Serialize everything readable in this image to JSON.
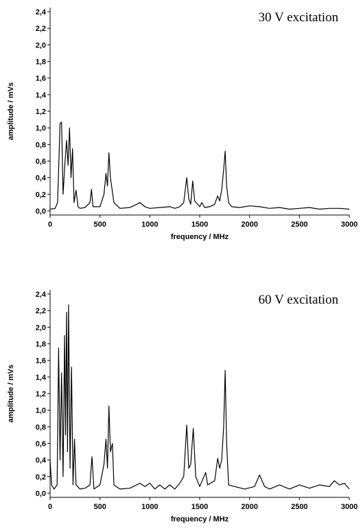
{
  "chart_data": [
    {
      "type": "line",
      "annotation": "30 V excitation",
      "xlabel": "frequency / MHz",
      "ylabel": "amplitude / mVs",
      "x": [
        0,
        50,
        75,
        100,
        115,
        130,
        150,
        165,
        180,
        195,
        210,
        225,
        240,
        260,
        280,
        300,
        350,
        400,
        415,
        430,
        500,
        540,
        560,
        575,
        590,
        605,
        620,
        640,
        700,
        800,
        870,
        900,
        950,
        1000,
        1100,
        1200,
        1250,
        1300,
        1340,
        1370,
        1390,
        1410,
        1430,
        1450,
        1500,
        1520,
        1550,
        1600,
        1650,
        1680,
        1700,
        1720,
        1740,
        1755,
        1770,
        1790,
        1820,
        1900,
        2000,
        2100,
        2200,
        2300,
        2400,
        2500,
        2600,
        2700,
        2800,
        2900,
        3000
      ],
      "values": [
        0.02,
        0.03,
        0.1,
        1.05,
        1.07,
        0.2,
        0.6,
        0.85,
        0.55,
        1.0,
        0.4,
        0.75,
        0.1,
        0.25,
        0.05,
        0.03,
        0.04,
        0.1,
        0.26,
        0.05,
        0.05,
        0.2,
        0.45,
        0.3,
        0.7,
        0.4,
        0.27,
        0.1,
        0.03,
        0.04,
        0.08,
        0.1,
        0.05,
        0.03,
        0.04,
        0.05,
        0.03,
        0.05,
        0.1,
        0.4,
        0.15,
        0.08,
        0.36,
        0.12,
        0.05,
        0.1,
        0.04,
        0.05,
        0.08,
        0.18,
        0.12,
        0.25,
        0.5,
        0.72,
        0.3,
        0.1,
        0.05,
        0.04,
        0.06,
        0.05,
        0.03,
        0.04,
        0.02,
        0.03,
        0.04,
        0.02,
        0.03,
        0.03,
        0.02
      ],
      "color": "#000000",
      "xlim": [
        0,
        3000
      ],
      "xticks": [
        0,
        500,
        1000,
        1500,
        2000,
        2500,
        3000
      ],
      "ylim": [
        -0.05,
        2.45
      ],
      "yticks": [
        {
          "value": 0,
          "label": "0,0"
        },
        {
          "value": 0.2,
          "label": "0,2"
        },
        {
          "value": 0.4,
          "label": "0,4"
        },
        {
          "value": 0.6,
          "label": "0,6"
        },
        {
          "value": 0.8,
          "label": "0,8"
        },
        {
          "value": 1.0,
          "label": "1,0"
        },
        {
          "value": 1.2,
          "label": "1,2"
        },
        {
          "value": 1.4,
          "label": "1,4"
        },
        {
          "value": 1.6,
          "label": "1,6"
        },
        {
          "value": 1.8,
          "label": "1,8"
        },
        {
          "value": 2.0,
          "label": "2,0"
        },
        {
          "value": 2.2,
          "label": "2,2"
        },
        {
          "value": 2.4,
          "label": "2,4"
        }
      ]
    },
    {
      "type": "line",
      "annotation": "60 V excitation",
      "xlabel": "frequency / MHz",
      "ylabel": "amplitude / mVs",
      "x": [
        0,
        15,
        40,
        70,
        85,
        100,
        115,
        130,
        145,
        155,
        165,
        175,
        185,
        200,
        215,
        230,
        245,
        260,
        300,
        350,
        400,
        420,
        440,
        500,
        540,
        560,
        575,
        590,
        605,
        625,
        640,
        700,
        800,
        900,
        950,
        1000,
        1050,
        1100,
        1150,
        1200,
        1250,
        1300,
        1340,
        1370,
        1390,
        1410,
        1435,
        1460,
        1500,
        1560,
        1580,
        1650,
        1680,
        1700,
        1720,
        1740,
        1755,
        1770,
        1790,
        1850,
        1950,
        2050,
        2100,
        2150,
        2200,
        2300,
        2400,
        2500,
        2600,
        2700,
        2800,
        2850,
        2900,
        2950,
        3000
      ],
      "values": [
        0.4,
        0.1,
        0.05,
        0.1,
        1.75,
        0.4,
        1.45,
        0.2,
        1.9,
        0.7,
        2.18,
        0.5,
        2.27,
        0.3,
        1.52,
        0.1,
        0.65,
        0.1,
        0.05,
        0.06,
        0.1,
        0.44,
        0.05,
        0.1,
        0.35,
        0.65,
        0.3,
        1.05,
        0.5,
        0.6,
        0.1,
        0.05,
        0.06,
        0.12,
        0.08,
        0.12,
        0.05,
        0.1,
        0.05,
        0.1,
        0.05,
        0.12,
        0.2,
        0.82,
        0.3,
        0.35,
        0.78,
        0.2,
        0.08,
        0.25,
        0.1,
        0.15,
        0.42,
        0.3,
        0.4,
        0.8,
        1.48,
        0.6,
        0.1,
        0.08,
        0.05,
        0.08,
        0.22,
        0.08,
        0.05,
        0.1,
        0.05,
        0.1,
        0.06,
        0.1,
        0.08,
        0.15,
        0.1,
        0.12,
        0.05
      ],
      "color": "#000000",
      "xlim": [
        0,
        3000
      ],
      "xticks": [
        0,
        500,
        1000,
        1500,
        2000,
        2500,
        3000
      ],
      "ylim": [
        -0.05,
        2.45
      ],
      "yticks": [
        {
          "value": 0,
          "label": "0,0"
        },
        {
          "value": 0.2,
          "label": "0,2"
        },
        {
          "value": 0.4,
          "label": "0,4"
        },
        {
          "value": 0.6,
          "label": "0,6"
        },
        {
          "value": 0.8,
          "label": "0,8"
        },
        {
          "value": 1.0,
          "label": "1,0"
        },
        {
          "value": 1.2,
          "label": "1,2"
        },
        {
          "value": 1.4,
          "label": "1,4"
        },
        {
          "value": 1.6,
          "label": "1,6"
        },
        {
          "value": 1.8,
          "label": "1,8"
        },
        {
          "value": 2.0,
          "label": "2,0"
        },
        {
          "value": 2.2,
          "label": "2,2"
        },
        {
          "value": 2.4,
          "label": "2,4"
        }
      ]
    }
  ]
}
